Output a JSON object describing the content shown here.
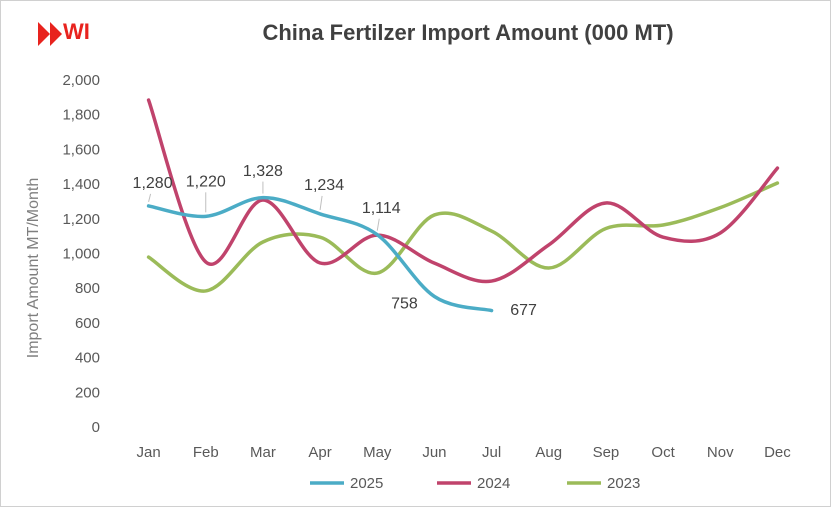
{
  "logo": {
    "text": "WI"
  },
  "chart_data": {
    "type": "line",
    "title": "China Fertilzer Import Amount (000 MT)",
    "y_label": "Import Amount MT/Month",
    "categories": [
      "Jan",
      "Feb",
      "Mar",
      "Apr",
      "May",
      "Jun",
      "Jul",
      "Aug",
      "Sep",
      "Oct",
      "Nov",
      "Dec"
    ],
    "series": [
      {
        "name": "2025",
        "color": "#4bacc6",
        "values": [
          1280,
          1220,
          1328,
          1234,
          1114,
          758,
          677,
          null,
          null,
          null,
          null,
          null
        ],
        "value_labels": [
          "1,280",
          "1,220",
          "1,328",
          "1,234",
          "1,114",
          "758",
          "677",
          null,
          null,
          null,
          null,
          null
        ]
      },
      {
        "name": "2024",
        "color": "#c0436c",
        "values": [
          1890,
          957,
          1314,
          951,
          1112,
          950,
          847,
          1055,
          1297,
          1100,
          1124,
          1498
        ]
      },
      {
        "name": "2023",
        "color": "#9bbb59",
        "values": [
          985,
          790,
          1072,
          1100,
          893,
          1228,
          1135,
          922,
          1150,
          1170,
          1270,
          1412
        ]
      }
    ],
    "ylim": [
      0,
      2000
    ],
    "yticks": [
      0,
      200,
      400,
      600,
      800,
      {
        "value": 1000,
        "label": "1,000"
      },
      {
        "value": 1200,
        "label": "1,200"
      },
      {
        "value": 1400,
        "label": "1,400"
      },
      {
        "value": 1600,
        "label": "1,600"
      },
      {
        "value": 1800,
        "label": "1,800"
      },
      {
        "value": 2000,
        "label": "2,000"
      }
    ],
    "legend": "bottom",
    "smooth": true
  }
}
